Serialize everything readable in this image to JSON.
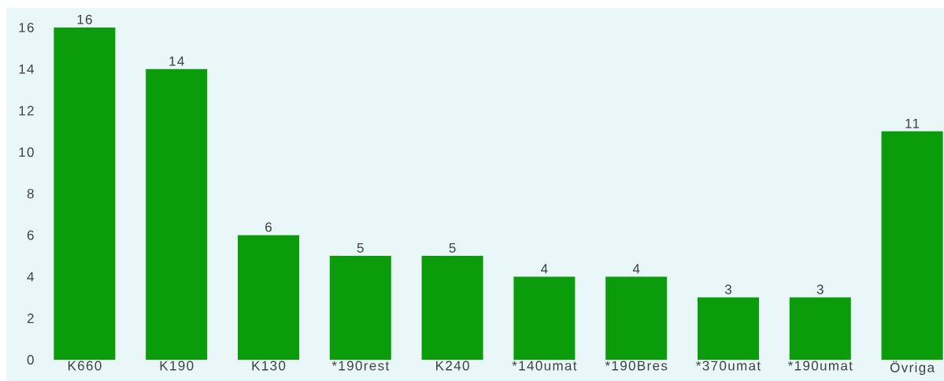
{
  "chart_data": {
    "type": "bar",
    "categories": [
      "K660",
      "K190",
      "K130",
      "*190rest",
      "K240",
      "*140umat",
      "*190Bres",
      "*370umat",
      "*190umat",
      "Övriga"
    ],
    "values": [
      16,
      14,
      6,
      5,
      5,
      4,
      4,
      3,
      3,
      11
    ],
    "color": "#0a9c0a",
    "ylim": [
      0,
      16
    ],
    "yticks": [
      0,
      2,
      4,
      6,
      8,
      10,
      12,
      14,
      16
    ],
    "data_labels": true
  }
}
